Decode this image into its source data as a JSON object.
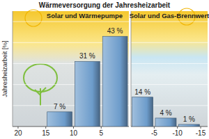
{
  "chart_data": [
    {
      "type": "bar",
      "title": "Wärmeversorgung der Jahresheizarbeit",
      "subtitle": "Solar und Wärmepumpe",
      "y_label": "Jahresheizarbeit [%]",
      "x": [
        12.5,
        7.5,
        2.5
      ],
      "values": [
        7,
        31,
        43
      ],
      "value_labels": [
        "7 %",
        "31 %",
        "43 %"
      ],
      "color": "#6d9ccb",
      "data_labels": true,
      "xlim": [
        21,
        0
      ],
      "xticks": [
        20,
        15,
        10,
        5
      ],
      "ylim": [
        0,
        55
      ],
      "yticks": [
        0,
        10,
        20,
        30,
        40,
        50
      ],
      "grid": true,
      "tick_labels": "x"
    },
    {
      "type": "bar",
      "subtitle": "Solar und Gas-Brennwert",
      "x": [
        -2.5,
        -7.5,
        -12.5
      ],
      "values": [
        14,
        4,
        1
      ],
      "value_labels": [
        "14 %",
        "4 %",
        "1 %"
      ],
      "color": "#6d9ccb",
      "data_labels": true,
      "xlim": [
        0,
        -16.5
      ],
      "xticks": [
        -5,
        -10,
        -15
      ],
      "ylim": [
        0,
        55
      ],
      "yticks": [
        0,
        10,
        20,
        30,
        40,
        50
      ],
      "grid": true,
      "tick_labels": "x"
    }
  ]
}
